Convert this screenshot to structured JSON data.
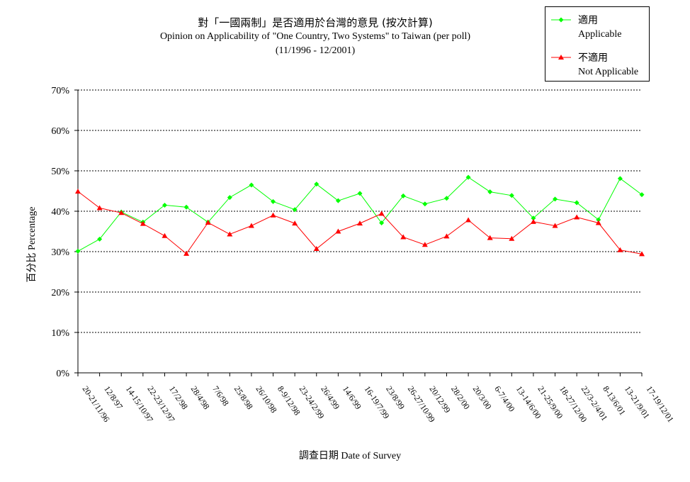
{
  "chart_data": {
    "type": "line",
    "title": "對「一國兩制」是否適用於台灣的意見 (按次計算)",
    "subtitle": "Opinion on Applicability of \"One Country, Two Systems\" to Taiwan (per poll)",
    "period": "(11/1996 - 12/2001)",
    "ylabel_zh": "百分比",
    "ylabel_en": "Percentage",
    "xlabel_zh": "調查日期",
    "xlabel_en": "Date of Survey",
    "ylim": [
      0,
      70
    ],
    "yticks": [
      "0%",
      "10%",
      "20%",
      "30%",
      "40%",
      "50%",
      "60%",
      "70%"
    ],
    "grid": "horizontal dashed",
    "legend_position": "top-right",
    "categories": [
      "20-21/11/96",
      "12/8/97",
      "14-15/10/97",
      "22-23/12/97",
      "17/2/98",
      "28/4/98",
      "7/6/98",
      "25/8/98",
      "26/10/98",
      "8-9/12/98",
      "23-24/2/99",
      "26/4/99",
      "14/6/99",
      "16-19/7/99",
      "23/8/99",
      "26-27/10/99",
      "20/12/99",
      "28/2/00",
      "20/3/00",
      "6-7/4/00",
      "13-14/6/00",
      "21-25/9/00",
      "18-27/12/00",
      "22/3-2/4/01",
      "8-13/6/01",
      "13-21/9/01",
      "17-19/12/01"
    ],
    "series": [
      {
        "name_zh": "適用",
        "name_en": "Applicable",
        "color": "#00ff00",
        "marker": "diamond",
        "values": [
          30.1,
          33.1,
          39.8,
          37.3,
          41.5,
          41.0,
          37.3,
          43.4,
          46.5,
          42.4,
          40.4,
          46.7,
          42.6,
          44.4,
          37.1,
          43.8,
          41.8,
          43.2,
          48.4,
          44.8,
          43.9,
          38.3,
          43.0,
          42.1,
          37.9,
          48.1,
          44.1
        ]
      },
      {
        "name_zh": "不適用",
        "name_en": "Not Applicable",
        "color": "#ff0000",
        "marker": "triangle",
        "values": [
          44.9,
          40.8,
          39.6,
          36.9,
          33.9,
          29.5,
          37.2,
          34.3,
          36.4,
          39.0,
          37.0,
          30.7,
          35.0,
          37.0,
          39.4,
          33.6,
          31.7,
          33.8,
          37.8,
          33.4,
          33.2,
          37.4,
          36.4,
          38.5,
          37.1,
          30.4,
          29.4
        ]
      }
    ]
  }
}
